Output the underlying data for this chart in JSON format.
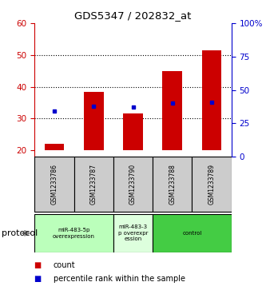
{
  "title": "GDS5347 / 202832_at",
  "samples": [
    "GSM1233786",
    "GSM1233787",
    "GSM1233790",
    "GSM1233788",
    "GSM1233789"
  ],
  "count_values": [
    22.0,
    38.5,
    31.5,
    45.0,
    51.5
  ],
  "percentile_values": [
    34,
    38,
    37,
    40,
    41
  ],
  "ylim_left": [
    18,
    60
  ],
  "ylim_right": [
    0,
    100
  ],
  "yticks_left": [
    20,
    30,
    40,
    50,
    60
  ],
  "yticks_right": [
    0,
    25,
    50,
    75,
    100
  ],
  "ytick_labels_right": [
    "0",
    "25",
    "50",
    "75",
    "100%"
  ],
  "bar_color": "#cc0000",
  "dot_color": "#0000cc",
  "bg_color": "#ffffff",
  "protocol_groups": [
    {
      "label": "miR-483-5p\noverexpression",
      "col_span": [
        0,
        1
      ],
      "color": "#bbffbb"
    },
    {
      "label": "miR-483-3\np overexpr\nession",
      "col_span": [
        2,
        2
      ],
      "color": "#ddffdd"
    },
    {
      "label": "control",
      "col_span": [
        3,
        4
      ],
      "color": "#44cc44"
    }
  ],
  "protocol_label": "protocol",
  "legend_count": "count",
  "legend_percentile": "percentile rank within the sample",
  "left_axis_color": "#cc0000",
  "right_axis_color": "#0000cc",
  "sample_box_color": "#cccccc",
  "bar_bottom": 20,
  "bar_width": 0.5
}
